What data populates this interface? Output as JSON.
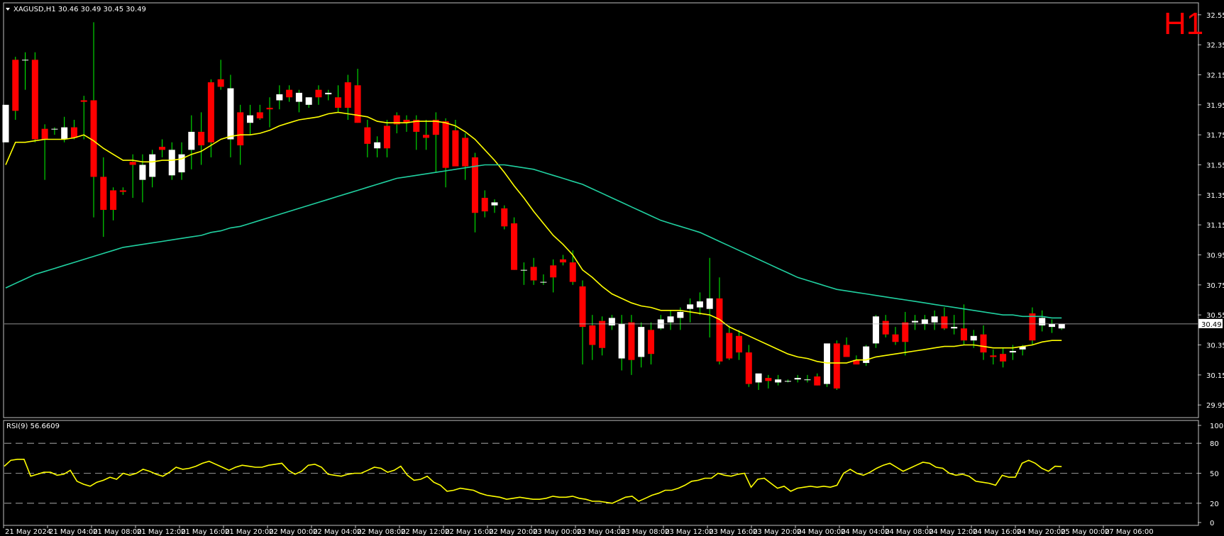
{
  "header": {
    "symbol_line": "XAGUSD,H1  30.46 30.49 30.45 30.49",
    "timeframe_badge": "H1"
  },
  "indicator": {
    "label": "RSI(9) 56.6609"
  },
  "colors": {
    "background": "#000000",
    "bull_candle": "#ffffff",
    "bear_candle": "#ff0000",
    "wick": "#00ff00",
    "ma_fast": "#ffff00",
    "ma_slow": "#20d0a0",
    "rsi_line": "#ffff00",
    "price_line": "#c0c0c0",
    "badge": "#ff0000"
  },
  "chart_data": [
    {
      "type": "candlestick",
      "title": "XAGUSD,H1",
      "ylim": [
        29.88,
        32.62
      ],
      "y_ticks": [
        "32.55",
        "32.35",
        "32.15",
        "31.95",
        "31.75",
        "31.55",
        "31.35",
        "31.15",
        "30.95",
        "30.75",
        "30.55",
        "30.35",
        "30.15",
        "29.95"
      ],
      "current_price_label": "30.49",
      "current_price": 30.49,
      "x_labels": [
        "21 May 2024",
        "21 May 04:00",
        "21 May 08:00",
        "21 May 12:00",
        "21 May 16:00",
        "21 May 20:00",
        "22 May 00:00",
        "22 May 04:00",
        "22 May 08:00",
        "22 May 12:00",
        "22 May 16:00",
        "22 May 20:00",
        "23 May 00:00",
        "23 May 04:00",
        "23 May 08:00",
        "23 May 12:00",
        "23 May 16:00",
        "23 May 20:00",
        "24 May 00:00",
        "24 May 04:00",
        "24 May 08:00",
        "24 May 12:00",
        "24 May 16:00",
        "24 May 20:00",
        "25 May 00:00",
        "27 May 06:00"
      ],
      "ohlc": [
        [
          31.7,
          31.95,
          31.7,
          31.95
        ],
        [
          32.25,
          32.27,
          31.85,
          31.91
        ],
        [
          32.25,
          32.3,
          32.05,
          32.25
        ],
        [
          32.25,
          32.3,
          31.7,
          31.72
        ],
        [
          31.79,
          31.82,
          31.45,
          31.72
        ],
        [
          31.79,
          31.8,
          31.75,
          31.79
        ],
        [
          31.72,
          31.87,
          31.7,
          31.8
        ],
        [
          31.8,
          31.85,
          31.72,
          31.73
        ],
        [
          31.98,
          32.01,
          31.72,
          31.97
        ],
        [
          31.98,
          32.5,
          31.2,
          31.47
        ],
        [
          31.47,
          31.6,
          31.07,
          31.25
        ],
        [
          31.38,
          31.4,
          31.18,
          31.25
        ],
        [
          31.38,
          31.4,
          31.35,
          31.37
        ],
        [
          31.57,
          31.62,
          31.33,
          31.55
        ],
        [
          31.45,
          31.62,
          31.3,
          31.55
        ],
        [
          31.47,
          31.65,
          31.4,
          31.62
        ],
        [
          31.67,
          31.72,
          31.6,
          31.65
        ],
        [
          31.48,
          31.7,
          31.45,
          31.65
        ],
        [
          31.5,
          31.7,
          31.45,
          31.62
        ],
        [
          31.65,
          31.88,
          31.52,
          31.77
        ],
        [
          31.77,
          31.9,
          31.55,
          31.68
        ],
        [
          32.1,
          32.12,
          31.6,
          31.7
        ],
        [
          32.12,
          32.25,
          32.05,
          32.07
        ],
        [
          31.72,
          32.15,
          31.6,
          32.06
        ],
        [
          31.9,
          31.95,
          31.55,
          31.68
        ],
        [
          31.83,
          31.95,
          31.75,
          31.88
        ],
        [
          31.9,
          31.95,
          31.85,
          31.86
        ],
        [
          31.93,
          32.0,
          31.8,
          31.92
        ],
        [
          31.98,
          32.08,
          31.92,
          32.02
        ],
        [
          32.05,
          32.08,
          31.97,
          32.0
        ],
        [
          31.97,
          32.05,
          31.9,
          32.03
        ],
        [
          31.95,
          32.0,
          31.93,
          32.0
        ],
        [
          32.05,
          32.08,
          31.95,
          32.0
        ],
        [
          32.02,
          32.05,
          31.98,
          32.03
        ],
        [
          32.0,
          32.08,
          31.9,
          31.93
        ],
        [
          32.1,
          32.15,
          31.85,
          31.93
        ],
        [
          32.08,
          32.19,
          31.83,
          31.83
        ],
        [
          31.8,
          31.85,
          31.6,
          31.69
        ],
        [
          31.66,
          31.74,
          31.6,
          31.7
        ],
        [
          31.81,
          31.85,
          31.6,
          31.66
        ],
        [
          31.88,
          31.9,
          31.76,
          31.82
        ],
        [
          31.85,
          31.88,
          31.77,
          31.83
        ],
        [
          31.85,
          31.88,
          31.65,
          31.77
        ],
        [
          31.75,
          31.85,
          31.65,
          31.73
        ],
        [
          31.85,
          31.9,
          31.5,
          31.75
        ],
        [
          31.84,
          31.86,
          31.4,
          31.53
        ],
        [
          31.78,
          31.85,
          31.55,
          31.54
        ],
        [
          31.73,
          31.76,
          31.45,
          31.54
        ],
        [
          31.6,
          31.63,
          31.1,
          31.23
        ],
        [
          31.33,
          31.38,
          31.2,
          31.24
        ],
        [
          31.28,
          31.32,
          31.23,
          31.3
        ],
        [
          31.26,
          31.28,
          31.12,
          31.14
        ],
        [
          31.16,
          31.2,
          30.85,
          30.85
        ],
        [
          30.85,
          30.9,
          30.75,
          30.85
        ],
        [
          30.87,
          30.93,
          30.75,
          30.78
        ],
        [
          30.77,
          30.82,
          30.75,
          30.77
        ],
        [
          30.88,
          30.92,
          30.7,
          30.8
        ],
        [
          30.92,
          30.95,
          30.88,
          30.9
        ],
        [
          30.9,
          30.98,
          30.75,
          30.77
        ],
        [
          30.74,
          30.78,
          30.22,
          30.47
        ],
        [
          30.48,
          30.55,
          30.25,
          30.35
        ],
        [
          30.51,
          30.54,
          30.28,
          30.33
        ],
        [
          30.48,
          30.55,
          30.45,
          30.53
        ],
        [
          30.26,
          30.55,
          30.18,
          30.49
        ],
        [
          30.5,
          30.55,
          30.15,
          30.25
        ],
        [
          30.27,
          30.5,
          30.2,
          30.47
        ],
        [
          30.45,
          30.5,
          30.22,
          30.29
        ],
        [
          30.46,
          30.55,
          30.45,
          30.52
        ],
        [
          30.5,
          30.58,
          30.45,
          30.54
        ],
        [
          30.53,
          30.6,
          30.45,
          30.57
        ],
        [
          30.59,
          30.66,
          30.5,
          30.62
        ],
        [
          30.6,
          30.7,
          30.55,
          30.64
        ],
        [
          30.59,
          30.93,
          30.4,
          30.66
        ],
        [
          30.66,
          30.8,
          30.22,
          30.24
        ],
        [
          30.43,
          30.48,
          30.25,
          30.26
        ],
        [
          30.41,
          30.45,
          30.25,
          30.3
        ],
        [
          30.3,
          30.35,
          30.07,
          30.09
        ],
        [
          30.1,
          30.15,
          30.05,
          30.16
        ],
        [
          30.13,
          30.15,
          30.06,
          30.11
        ],
        [
          30.1,
          30.15,
          30.08,
          30.12
        ],
        [
          30.11,
          30.12,
          30.1,
          30.11
        ],
        [
          30.12,
          30.15,
          30.1,
          30.13
        ],
        [
          30.12,
          30.15,
          30.1,
          30.12
        ],
        [
          30.14,
          30.16,
          30.08,
          30.08
        ],
        [
          30.09,
          30.35,
          30.07,
          30.36
        ],
        [
          30.36,
          30.38,
          30.05,
          30.06
        ],
        [
          30.35,
          30.4,
          30.28,
          30.27
        ],
        [
          30.25,
          30.28,
          30.22,
          30.22
        ],
        [
          30.23,
          30.35,
          30.21,
          30.34
        ],
        [
          30.36,
          30.55,
          30.33,
          30.54
        ],
        [
          30.51,
          30.55,
          30.4,
          30.42
        ],
        [
          30.42,
          30.47,
          30.35,
          30.37
        ],
        [
          30.5,
          30.57,
          30.28,
          30.37
        ],
        [
          30.5,
          30.55,
          30.45,
          30.51
        ],
        [
          30.49,
          30.55,
          30.45,
          30.52
        ],
        [
          30.5,
          30.58,
          30.45,
          30.54
        ],
        [
          30.54,
          30.6,
          30.45,
          30.46
        ],
        [
          30.46,
          30.55,
          30.42,
          30.47
        ],
        [
          30.46,
          30.62,
          30.35,
          30.38
        ],
        [
          30.38,
          30.45,
          30.33,
          30.41
        ],
        [
          30.42,
          30.48,
          30.25,
          30.3
        ],
        [
          30.28,
          30.32,
          30.22,
          30.27
        ],
        [
          30.29,
          30.33,
          30.2,
          30.24
        ],
        [
          30.3,
          30.35,
          30.25,
          30.31
        ],
        [
          30.32,
          30.35,
          30.28,
          30.34
        ],
        [
          30.56,
          30.6,
          30.35,
          30.38
        ],
        [
          30.48,
          30.58,
          30.44,
          30.53
        ],
        [
          30.47,
          30.52,
          30.43,
          30.49
        ],
        [
          30.46,
          30.49,
          30.45,
          30.49
        ]
      ],
      "series": [
        {
          "name": "",
          "color_key": "ma_fast",
          "values": [
            31.55,
            31.7,
            31.7,
            31.71,
            31.72,
            31.72,
            31.72,
            31.73,
            31.75,
            31.71,
            31.66,
            31.62,
            31.58,
            31.58,
            31.57,
            31.57,
            31.58,
            31.58,
            31.59,
            31.62,
            31.64,
            31.68,
            31.72,
            31.74,
            31.75,
            31.75,
            31.76,
            31.78,
            31.81,
            31.83,
            31.85,
            31.86,
            31.87,
            31.89,
            31.9,
            31.89,
            31.88,
            31.87,
            31.84,
            31.83,
            31.83,
            31.83,
            31.84,
            31.84,
            31.84,
            31.83,
            31.81,
            31.77,
            31.72,
            31.65,
            31.58,
            31.5,
            31.41,
            31.33,
            31.24,
            31.16,
            31.08,
            31.02,
            30.95,
            30.85,
            30.8,
            30.74,
            30.69,
            30.66,
            30.63,
            30.61,
            30.6,
            30.58,
            30.58,
            30.58,
            30.57,
            30.56,
            30.55,
            30.52,
            30.47,
            30.44,
            30.41,
            30.38,
            30.35,
            30.32,
            30.29,
            30.27,
            30.26,
            30.24,
            30.23,
            30.23,
            30.23,
            30.25,
            30.25,
            30.27,
            30.28,
            30.29,
            30.3,
            30.31,
            30.32,
            30.33,
            30.34,
            30.34,
            30.35,
            30.35,
            30.34,
            30.33,
            30.33,
            30.33,
            30.34,
            30.35,
            30.37,
            30.38,
            30.38
          ]
        },
        {
          "name": "",
          "color_key": "ma_slow",
          "values": [
            30.73,
            30.76,
            30.79,
            30.82,
            30.84,
            30.86,
            30.88,
            30.9,
            30.92,
            30.94,
            30.96,
            30.98,
            31.0,
            31.01,
            31.02,
            31.03,
            31.04,
            31.05,
            31.06,
            31.07,
            31.08,
            31.1,
            31.11,
            31.13,
            31.14,
            31.16,
            31.18,
            31.2,
            31.22,
            31.24,
            31.26,
            31.28,
            31.3,
            31.32,
            31.34,
            31.36,
            31.38,
            31.4,
            31.42,
            31.44,
            31.46,
            31.47,
            31.48,
            31.49,
            31.5,
            31.51,
            31.52,
            31.53,
            31.54,
            31.55,
            31.55,
            31.55,
            31.54,
            31.53,
            31.52,
            31.5,
            31.48,
            31.46,
            31.44,
            31.42,
            31.39,
            31.36,
            31.33,
            31.3,
            31.27,
            31.24,
            31.21,
            31.18,
            31.16,
            31.14,
            31.12,
            31.1,
            31.07,
            31.04,
            31.01,
            30.98,
            30.95,
            30.92,
            30.89,
            30.86,
            30.83,
            30.8,
            30.78,
            30.76,
            30.74,
            30.72,
            30.71,
            30.7,
            30.69,
            30.68,
            30.67,
            30.66,
            30.65,
            30.64,
            30.63,
            30.62,
            30.61,
            30.6,
            30.59,
            30.58,
            30.57,
            30.56,
            30.55,
            30.55,
            30.54,
            30.54,
            30.54,
            30.53,
            30.53
          ]
        }
      ]
    },
    {
      "type": "line",
      "title": "RSI(9) 56.6609",
      "ylim": [
        0,
        100
      ],
      "y_ticks": [
        "100",
        "80",
        "50",
        "20",
        "0"
      ],
      "levels": [
        80,
        50,
        20
      ],
      "series": [
        {
          "name": "RSI(9)",
          "color_key": "rsi_line",
          "values": [
            57,
            63,
            64,
            64,
            47,
            49,
            51,
            51,
            48,
            49,
            53,
            42,
            39,
            37,
            41,
            43,
            46,
            44,
            50,
            48,
            50,
            54,
            52,
            49,
            47,
            51,
            56,
            54,
            55,
            57,
            60,
            62,
            59,
            56,
            53,
            56,
            58,
            57,
            56,
            56,
            58,
            59,
            60,
            53,
            49,
            52,
            58,
            59,
            56,
            49,
            48,
            47,
            49,
            50,
            50,
            53,
            56,
            55,
            51,
            53,
            57,
            48,
            43,
            44,
            47,
            41,
            38,
            32,
            33,
            35,
            34,
            33,
            30,
            28,
            27,
            26,
            24,
            25,
            26,
            25,
            24,
            24,
            25,
            27,
            26,
            26,
            27,
            25,
            24,
            22,
            22,
            21,
            20,
            23,
            26,
            27,
            22,
            25,
            28,
            30,
            33,
            33,
            35,
            38,
            42,
            43,
            45,
            45,
            50,
            48,
            47,
            49,
            50,
            36,
            44,
            45,
            40,
            35,
            37,
            32,
            35,
            36,
            37,
            36,
            37,
            36,
            38,
            50,
            54,
            50,
            48,
            51,
            55,
            58,
            60,
            56,
            52,
            55,
            58,
            61,
            60,
            56,
            55,
            50,
            48,
            49,
            47,
            42,
            41,
            40,
            38,
            48,
            46,
            46,
            60,
            63,
            60,
            55,
            52,
            57,
            56.6609
          ]
        }
      ]
    }
  ]
}
